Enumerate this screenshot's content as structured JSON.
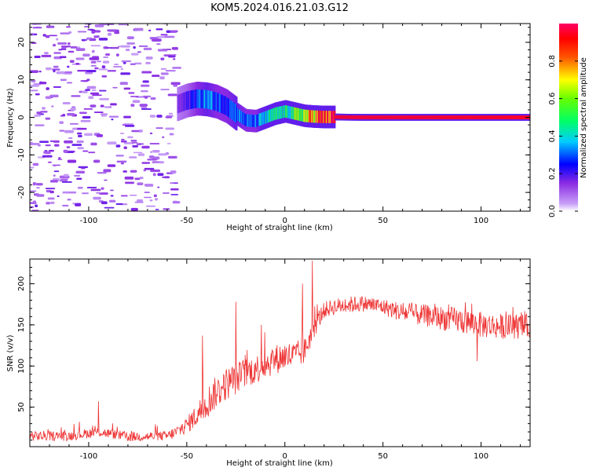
{
  "figure": {
    "title": "KOM5.2024.016.21.03.G12"
  },
  "chart_data": [
    {
      "type": "heatmap",
      "xlabel": "Height of straight line (km)",
      "ylabel": "Frequency (Hz)",
      "xlim": [
        -130,
        125
      ],
      "ylim": [
        -25,
        25
      ],
      "xticks": [
        -100,
        -50,
        0,
        50,
        100
      ],
      "yticks": [
        -20,
        -10,
        0,
        10,
        20
      ],
      "xtick_labels": [
        "-100",
        "-50",
        "0",
        "50",
        "100"
      ],
      "ytick_labels": [
        "-20",
        "-10",
        "0",
        "10",
        "20"
      ],
      "colorbar": {
        "label": "Normalized spectral amplitude",
        "range": [
          0,
          1
        ],
        "ticks": [
          0,
          0.2,
          0.4,
          0.6,
          0.8
        ],
        "tick_labels": [
          "0.0",
          "0.2",
          "0.4",
          "0.6",
          "0.8"
        ],
        "colormap": "rainbow (magenta-blue-cyan-green-yellow-red)"
      },
      "ridge": {
        "x": [
          -55,
          -50,
          -45,
          -40,
          -35,
          -30,
          -25,
          -20,
          -15,
          -10,
          -5,
          0,
          5,
          10,
          15,
          20,
          25,
          30,
          40,
          60,
          80,
          100,
          125
        ],
        "freq": [
          3.5,
          4.5,
          5,
          4.8,
          4.2,
          3,
          1,
          -0.8,
          -1,
          0,
          1,
          1.6,
          1,
          0.4,
          0.2,
          0.1,
          0.1,
          0.05,
          0,
          0,
          0,
          0,
          0
        ],
        "amplitude": [
          0.15,
          0.2,
          0.3,
          0.35,
          0.3,
          0.3,
          0.35,
          0.3,
          0.3,
          0.4,
          0.45,
          0.45,
          0.55,
          0.65,
          0.85,
          0.9,
          0.95,
          0.95,
          0.95,
          0.95,
          0.95,
          0.95,
          0.95
        ]
      },
      "noise_region_x": [
        -130,
        -55
      ],
      "grid": false
    },
    {
      "type": "line",
      "xlabel": "Height of straight line (km)",
      "ylabel": "SNR (v/v)",
      "xlim": [
        -130,
        125
      ],
      "ylim": [
        2,
        230
      ],
      "xticks": [
        -100,
        -50,
        0,
        50,
        100
      ],
      "yticks": [
        50,
        100,
        150,
        200
      ],
      "xtick_labels": [
        "-100",
        "-50",
        "0",
        "50",
        "100"
      ],
      "ytick_labels": [
        "50",
        "100",
        "150",
        "200"
      ],
      "color": "#ee3333",
      "grid": false,
      "trend": {
        "x": [
          -130,
          -110,
          -95,
          -80,
          -60,
          -55,
          -50,
          -45,
          -40,
          -35,
          -30,
          -25,
          -20,
          -15,
          -10,
          -5,
          0,
          5,
          10,
          15,
          20,
          25,
          30,
          40,
          50,
          60,
          75,
          90,
          100,
          110,
          125
        ],
        "y": [
          15,
          15,
          20,
          14,
          15,
          20,
          28,
          40,
          55,
          68,
          78,
          85,
          92,
          96,
          102,
          108,
          112,
          112,
          118,
          148,
          168,
          172,
          174,
          176,
          172,
          165,
          160,
          155,
          150,
          148,
          148
        ],
        "spread": [
          6,
          6,
          6,
          6,
          6,
          8,
          10,
          14,
          20,
          20,
          20,
          20,
          18,
          18,
          18,
          18,
          18,
          18,
          16,
          14,
          10,
          10,
          10,
          10,
          10,
          12,
          14,
          16,
          16,
          15,
          15
        ]
      },
      "spikes": [
        {
          "x": -95,
          "y": 57
        },
        {
          "x": -42,
          "y": 137
        },
        {
          "x": -25,
          "y": 178
        },
        {
          "x": -12,
          "y": 150
        },
        {
          "x": 9,
          "y": 200
        },
        {
          "x": 14,
          "y": 228
        },
        {
          "x": 98,
          "y": 106
        }
      ]
    }
  ]
}
